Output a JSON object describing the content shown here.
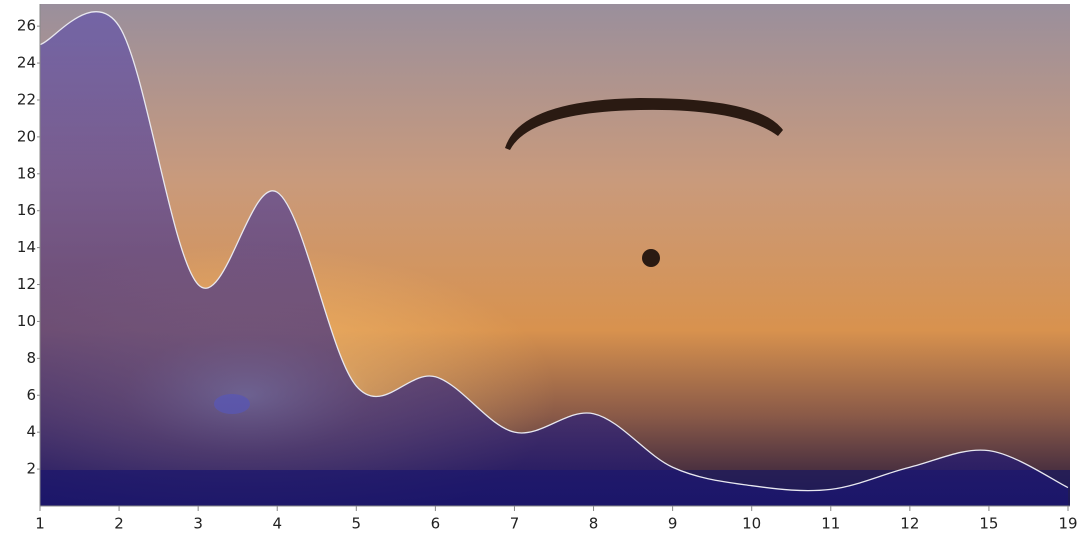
{
  "chart_data": {
    "type": "area-spline",
    "categories": [
      "1",
      "2",
      "3",
      "4",
      "5",
      "6",
      "7",
      "8",
      "9",
      "10",
      "11",
      "12",
      "15",
      "19"
    ],
    "values": [
      25,
      26,
      12,
      17,
      6.5,
      7,
      4,
      5,
      2.1,
      1.1,
      0.9,
      2.1,
      3,
      1
    ],
    "color": "#2a1f8f",
    "ylim": [
      0,
      27.2
    ],
    "yticks": [
      2,
      4,
      6,
      8,
      10,
      12,
      14,
      16,
      18,
      20,
      22,
      24,
      26
    ],
    "grid": false
  }
}
